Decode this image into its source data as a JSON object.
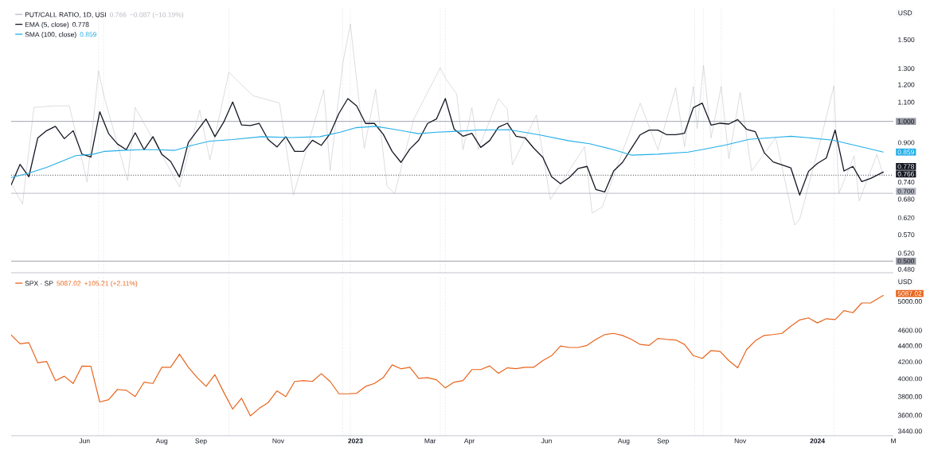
{
  "chart_data": [
    {
      "type": "line",
      "log": true,
      "legend": "top left",
      "tick_labels": "y",
      "xlim": [
        "2022-04-04",
        "2024-03-01"
      ],
      "ylim": [
        0.472,
        1.756
      ],
      "yticks": [
        {
          "value": 1.5,
          "label": "1.500"
        },
        {
          "value": 1.3,
          "label": "1.300"
        },
        {
          "value": 1.2,
          "label": "1.200"
        },
        {
          "value": 1.1,
          "label": "1.100"
        },
        {
          "value": 0.9,
          "label": "0.900"
        },
        {
          "value": 0.74,
          "label": "0.740"
        },
        {
          "value": 0.68,
          "label": "0.680"
        },
        {
          "value": 0.62,
          "label": "0.620"
        },
        {
          "value": 0.57,
          "label": "0.570"
        },
        {
          "value": 0.52,
          "label": "0.520"
        },
        {
          "value": 0.48,
          "label": "0.480"
        }
      ],
      "x": [
        "2022-04-04",
        "2022-04-11",
        "2022-04-18",
        "2022-04-25",
        "2022-05-02",
        "2022-05-09",
        "2022-05-16",
        "2022-05-23",
        "2022-05-30",
        "2022-06-06",
        "2022-06-13",
        "2022-06-20",
        "2022-06-27",
        "2022-07-04",
        "2022-07-11",
        "2022-07-18",
        "2022-07-25",
        "2022-08-01",
        "2022-08-08",
        "2022-08-15",
        "2022-08-22",
        "2022-08-29",
        "2022-09-05",
        "2022-09-12",
        "2022-09-19",
        "2022-09-26",
        "2022-10-03",
        "2022-10-10",
        "2022-10-17",
        "2022-10-24",
        "2022-10-31",
        "2022-11-07",
        "2022-11-14",
        "2022-11-21",
        "2022-11-28",
        "2022-12-05",
        "2022-12-12",
        "2022-12-19",
        "2022-12-26",
        "2023-01-02",
        "2023-01-09",
        "2023-01-16",
        "2023-01-23",
        "2023-01-30",
        "2023-02-06",
        "2023-02-13",
        "2023-02-20",
        "2023-02-27",
        "2023-03-06",
        "2023-03-13",
        "2023-03-20",
        "2023-03-27",
        "2023-04-03",
        "2023-04-10",
        "2023-04-17",
        "2023-04-24",
        "2023-05-01",
        "2023-05-08",
        "2023-05-15",
        "2023-05-22",
        "2023-05-29",
        "2023-06-05",
        "2023-06-12",
        "2023-06-19",
        "2023-06-26",
        "2023-07-03",
        "2023-07-10",
        "2023-07-17",
        "2023-07-24",
        "2023-07-31",
        "2023-08-07",
        "2023-08-14",
        "2023-08-21",
        "2023-08-28",
        "2023-09-04",
        "2023-09-11",
        "2023-09-18",
        "2023-09-25",
        "2023-10-02",
        "2023-10-09",
        "2023-10-16",
        "2023-10-23",
        "2023-10-30",
        "2023-11-06",
        "2023-11-13",
        "2023-11-20",
        "2023-11-27",
        "2023-12-04",
        "2023-12-11",
        "2023-12-18",
        "2023-12-25",
        "2024-01-01",
        "2024-01-08",
        "2024-01-15",
        "2024-01-22",
        "2024-01-29",
        "2024-02-05",
        "2024-02-12",
        "2024-02-22"
      ],
      "series": [
        {
          "name": "PUT/CALL RATIO, 1D, USI",
          "color": "#b8bbc2",
          "x": [
            "2022-04-04",
            "2022-04-13",
            "2022-04-22",
            "2022-05-08",
            "2022-05-20",
            "2022-06-03",
            "2022-06-12",
            "2022-06-16",
            "2022-07-05",
            "2022-07-11",
            "2022-08-15",
            "2022-08-31",
            "2022-09-08",
            "2022-09-23",
            "2022-10-12",
            "2022-11-02",
            "2022-11-13",
            "2022-12-07",
            "2022-12-12",
            "2022-12-22",
            "2022-12-28",
            "2023-01-08",
            "2023-01-17",
            "2023-01-26",
            "2023-02-01",
            "2023-02-16",
            "2023-03-09",
            "2023-03-13",
            "2023-03-22",
            "2023-03-27",
            "2023-04-03",
            "2023-04-08",
            "2023-04-24",
            "2023-05-01",
            "2023-05-05",
            "2023-05-24",
            "2023-06-04",
            "2023-07-01",
            "2023-07-07",
            "2023-07-15",
            "2023-08-14",
            "2023-08-28",
            "2023-09-11",
            "2023-09-18",
            "2023-09-25",
            "2023-09-28",
            "2023-10-03",
            "2023-10-09",
            "2023-10-17",
            "2023-10-23",
            "2023-11-01",
            "2023-11-10",
            "2023-11-29",
            "2023-12-14",
            "2023-12-18",
            "2024-01-04",
            "2024-01-14",
            "2024-01-18",
            "2024-01-30",
            "2024-02-03",
            "2024-02-17",
            "2024-02-22"
          ],
          "values": [
            0.735,
            0.664,
            1.072,
            1.08,
            1.08,
            0.741,
            1.285,
            1.144,
            0.746,
            1.072,
            0.723,
            1.057,
            0.826,
            1.276,
            1.136,
            1.096,
            0.694,
            1.17,
            0.785,
            1.333,
            1.621,
            0.875,
            1.173,
            0.725,
            0.699,
            1.01,
            1.304,
            1.24,
            1.146,
            0.869,
            1.071,
            0.869,
            1.12,
            1.063,
            0.806,
            1.032,
            0.679,
            0.882,
            0.635,
            0.654,
            1.095,
            0.869,
            1.181,
            0.882,
            1.19,
            0.965,
            1.321,
            0.922,
            1.19,
            0.831,
            1.154,
            0.782,
            0.922,
            0.598,
            0.616,
            0.922,
            1.193,
            0.7,
            0.843,
            0.674,
            0.849,
            0.766
          ]
        },
        {
          "name": "EMA (5, close)",
          "color": "#131722",
          "values": [
            0.73,
            0.808,
            0.76,
            0.921,
            0.955,
            0.976,
            0.918,
            0.955,
            0.85,
            0.838,
            1.049,
            0.941,
            0.894,
            0.869,
            0.945,
            0.869,
            0.927,
            0.85,
            0.82,
            0.759,
            0.901,
            0.955,
            1.012,
            0.927,
            0.997,
            1.101,
            0.983,
            0.98,
            0.99,
            0.914,
            0.881,
            0.927,
            0.862,
            0.862,
            0.911,
            0.888,
            0.941,
            1.041,
            1.12,
            1.08,
            0.99,
            0.99,
            0.938,
            0.862,
            0.816,
            0.872,
            0.911,
            0.99,
            1.012,
            1.12,
            0.962,
            0.929,
            0.943,
            0.879,
            0.909,
            0.972,
            0.991,
            0.929,
            0.922,
            0.875,
            0.837,
            0.76,
            0.734,
            0.757,
            0.792,
            0.8,
            0.713,
            0.705,
            0.782,
            0.816,
            0.875,
            0.936,
            0.958,
            0.958,
            0.936,
            0.936,
            0.943,
            1.071,
            1.095,
            0.982,
            0.991,
            0.987,
            1.009,
            0.962,
            0.95,
            0.856,
            0.818,
            0.806,
            0.794,
            0.694,
            0.781,
            0.812,
            0.834,
            0.958,
            0.782,
            0.8,
            0.742,
            0.754,
            0.778
          ]
        },
        {
          "name": "SMA (100, close)",
          "color": "#22aee8",
          "x": [
            "2022-04-04",
            "2022-04-18",
            "2022-05-02",
            "2022-05-11",
            "2022-05-25",
            "2022-06-08",
            "2022-06-17",
            "2022-07-01",
            "2022-07-15",
            "2022-07-29",
            "2022-08-11",
            "2022-08-25",
            "2022-09-08",
            "2022-09-26",
            "2022-10-19",
            "2022-11-11",
            "2022-12-04",
            "2022-12-20",
            "2023-01-01",
            "2023-01-17",
            "2023-01-31",
            "2023-02-20",
            "2023-03-06",
            "2023-03-22",
            "2023-04-08",
            "2023-05-02",
            "2023-05-26",
            "2023-06-18",
            "2023-07-05",
            "2023-07-24",
            "2023-08-07",
            "2023-08-28",
            "2023-09-21",
            "2023-10-03",
            "2023-10-20",
            "2023-11-08",
            "2023-12-01",
            "2023-12-11",
            "2023-12-25",
            "2024-01-13",
            "2024-01-30",
            "2024-02-22"
          ],
          "values": [
            0.757,
            0.774,
            0.796,
            0.814,
            0.844,
            0.85,
            0.862,
            0.866,
            0.869,
            0.869,
            0.866,
            0.888,
            0.907,
            0.914,
            0.927,
            0.923,
            0.927,
            0.948,
            0.969,
            0.976,
            0.962,
            0.941,
            0.948,
            0.952,
            0.958,
            0.96,
            0.936,
            0.909,
            0.895,
            0.869,
            0.846,
            0.85,
            0.859,
            0.871,
            0.889,
            0.915,
            0.925,
            0.929,
            0.922,
            0.911,
            0.889,
            0.859
          ]
        }
      ],
      "ref_lines": [
        {
          "axis": "y",
          "value": 1.0,
          "label": "1.000",
          "color": "#9598a1"
        },
        {
          "axis": "y",
          "value": 0.766,
          "label": "0.766",
          "color": "#131722",
          "line_style": "dotted"
        },
        {
          "axis": "y",
          "value": 0.7,
          "label": "0.700",
          "color": "#b2b5be"
        },
        {
          "axis": "y",
          "value": 0.5,
          "label": "0.500",
          "color": "#9598a1"
        },
        {
          "axis": "x",
          "value": "2022-06-12",
          "color": "#b2b5be",
          "line_style": "dotted"
        },
        {
          "axis": "x",
          "value": "2022-06-16",
          "color": "#b2b5be",
          "line_style": "dotted"
        },
        {
          "axis": "x",
          "value": "2022-09-23",
          "color": "#b2b5be",
          "line_style": "dotted"
        },
        {
          "axis": "x",
          "value": "2022-12-22",
          "color": "#b2b5be",
          "line_style": "dotted"
        },
        {
          "axis": "x",
          "value": "2022-12-28",
          "color": "#b2b5be",
          "line_style": "dotted"
        },
        {
          "axis": "x",
          "value": "2023-03-09",
          "color": "#b2b5be",
          "line_style": "dotted"
        },
        {
          "axis": "x",
          "value": "2023-03-13",
          "color": "#b2b5be",
          "line_style": "dotted"
        },
        {
          "axis": "x",
          "value": "2023-09-26",
          "color": "#b2b5be",
          "line_style": "dotted"
        },
        {
          "axis": "x",
          "value": "2023-10-03",
          "color": "#b2b5be",
          "line_style": "dotted"
        },
        {
          "axis": "x",
          "value": "2023-10-17",
          "color": "#b2b5be",
          "line_style": "dotted"
        },
        {
          "axis": "x",
          "value": "2024-01-14",
          "color": "#b2b5be",
          "line_style": "dotted"
        }
      ],
      "annotations": [
        "0.766",
        "−0.087 (−10.19%)",
        "0.778",
        "0.859",
        "USD",
        {
          "text": "0.859",
          "x": "2024-02-22",
          "y": 0.859
        },
        {
          "text": "0.778",
          "x": "2024-02-22",
          "y": 0.778
        }
      ]
    },
    {
      "type": "line",
      "log": true,
      "legend": "top left",
      "xlim": [
        "2022-04-04",
        "2024-03-01"
      ],
      "ylim": [
        3395,
        5370
      ],
      "xticks": [
        {
          "value": "2022-06-01",
          "label": "Jun"
        },
        {
          "value": "2022-08-01",
          "label": "Aug"
        },
        {
          "value": "2022-09-01",
          "label": "Sep"
        },
        {
          "value": "2022-11-01",
          "label": "Nov"
        },
        {
          "value": "2023-01-01",
          "label": "2023"
        },
        {
          "value": "2023-03-01",
          "label": "Mar"
        },
        {
          "value": "2023-04-01",
          "label": "Apr"
        },
        {
          "value": "2023-06-01",
          "label": "Jun"
        },
        {
          "value": "2023-08-01",
          "label": "Aug"
        },
        {
          "value": "2023-09-01",
          "label": "Sep"
        },
        {
          "value": "2023-11-01",
          "label": "Nov"
        },
        {
          "value": "2024-01-01",
          "label": "2024"
        },
        {
          "value": "2024-03-01",
          "label": "M"
        }
      ],
      "yticks": [
        {
          "value": 5000,
          "label": "5000.00"
        },
        {
          "value": 4600,
          "label": "4600.00"
        },
        {
          "value": 4400,
          "label": "4400.00"
        },
        {
          "value": 4200,
          "label": "4200.00"
        },
        {
          "value": 4000,
          "label": "4000.00"
        },
        {
          "value": 3800,
          "label": "3800.00"
        },
        {
          "value": 3600,
          "label": "3600.00"
        },
        {
          "value": 3440,
          "label": "3440.00"
        }
      ],
      "x": [
        "2022-04-04",
        "2022-04-11",
        "2022-04-18",
        "2022-04-25",
        "2022-05-02",
        "2022-05-09",
        "2022-05-16",
        "2022-05-23",
        "2022-05-30",
        "2022-06-06",
        "2022-06-13",
        "2022-06-20",
        "2022-06-27",
        "2022-07-04",
        "2022-07-11",
        "2022-07-18",
        "2022-07-25",
        "2022-08-01",
        "2022-08-08",
        "2022-08-15",
        "2022-08-22",
        "2022-08-29",
        "2022-09-05",
        "2022-09-12",
        "2022-09-19",
        "2022-09-26",
        "2022-10-03",
        "2022-10-10",
        "2022-10-17",
        "2022-10-24",
        "2022-10-31",
        "2022-11-07",
        "2022-11-14",
        "2022-11-21",
        "2022-11-28",
        "2022-12-05",
        "2022-12-12",
        "2022-12-19",
        "2022-12-26",
        "2023-01-02",
        "2023-01-09",
        "2023-01-16",
        "2023-01-23",
        "2023-01-30",
        "2023-02-06",
        "2023-02-13",
        "2023-02-20",
        "2023-02-27",
        "2023-03-06",
        "2023-03-13",
        "2023-03-20",
        "2023-03-27",
        "2023-04-03",
        "2023-04-10",
        "2023-04-17",
        "2023-04-24",
        "2023-05-01",
        "2023-05-08",
        "2023-05-15",
        "2023-05-22",
        "2023-05-29",
        "2023-06-05",
        "2023-06-12",
        "2023-06-19",
        "2023-06-26",
        "2023-07-03",
        "2023-07-10",
        "2023-07-17",
        "2023-07-24",
        "2023-07-31",
        "2023-08-07",
        "2023-08-14",
        "2023-08-21",
        "2023-08-28",
        "2023-09-04",
        "2023-09-11",
        "2023-09-18",
        "2023-09-25",
        "2023-10-02",
        "2023-10-09",
        "2023-10-16",
        "2023-10-23",
        "2023-10-30",
        "2023-11-06",
        "2023-11-13",
        "2023-11-20",
        "2023-11-27",
        "2023-12-04",
        "2023-12-11",
        "2023-12-18",
        "2023-12-25",
        "2024-01-01",
        "2024-01-08",
        "2024-01-15",
        "2024-01-22",
        "2024-01-29",
        "2024-02-05",
        "2024-02-12",
        "2024-02-22"
      ],
      "series": [
        {
          "name": "SPX · SP",
          "color": "#e8641b",
          "values": [
            4540,
            4425,
            4440,
            4190,
            4205,
            3980,
            4030,
            3947,
            4150,
            4147,
            3742,
            3767,
            3880,
            3870,
            3800,
            3963,
            3947,
            4135,
            4135,
            4295,
            4135,
            4014,
            3914,
            4048,
            3848,
            3666,
            3783,
            3595,
            3673,
            3735,
            3864,
            3800,
            3970,
            3980,
            3970,
            4060,
            3970,
            3831,
            3831,
            3837,
            3914,
            3947,
            4014,
            4164,
            4117,
            4135,
            4005,
            4014,
            3990,
            3897,
            3963,
            3980,
            4108,
            4108,
            4152,
            4064,
            4129,
            4118,
            4136,
            4136,
            4216,
            4276,
            4397,
            4378,
            4378,
            4405,
            4482,
            4544,
            4560,
            4533,
            4482,
            4417,
            4405,
            4494,
            4482,
            4474,
            4417,
            4276,
            4242,
            4340,
            4329,
            4216,
            4129,
            4351,
            4466,
            4533,
            4544,
            4560,
            4655,
            4740,
            4768,
            4699,
            4757,
            4745,
            4870,
            4840,
            4978,
            4978,
            5087.02
          ]
        }
      ],
      "ref_lines": [
        {
          "axis": "x",
          "value": "2022-06-12",
          "color": "#b2b5be",
          "line_style": "dotted"
        },
        {
          "axis": "x",
          "value": "2022-06-16",
          "color": "#b2b5be",
          "line_style": "dotted"
        },
        {
          "axis": "x",
          "value": "2022-09-23",
          "color": "#b2b5be",
          "line_style": "dotted"
        },
        {
          "axis": "x",
          "value": "2022-12-22",
          "color": "#b2b5be",
          "line_style": "dotted"
        },
        {
          "axis": "x",
          "value": "2022-12-28",
          "color": "#b2b5be",
          "line_style": "dotted"
        },
        {
          "axis": "x",
          "value": "2023-03-09",
          "color": "#b2b5be",
          "line_style": "dotted"
        },
        {
          "axis": "x",
          "value": "2023-03-13",
          "color": "#b2b5be",
          "line_style": "dotted"
        },
        {
          "axis": "x",
          "value": "2023-09-26",
          "color": "#b2b5be",
          "line_style": "dotted"
        },
        {
          "axis": "x",
          "value": "2023-10-03",
          "color": "#b2b5be",
          "line_style": "dotted"
        },
        {
          "axis": "x",
          "value": "2023-10-17",
          "color": "#b2b5be",
          "line_style": "dotted"
        },
        {
          "axis": "x",
          "value": "2024-01-14",
          "color": "#b2b5be",
          "line_style": "dotted"
        }
      ],
      "annotations": [
        "5087.02",
        "+105.21 (+2.11%)",
        "USD",
        {
          "text": "5087.02",
          "x": "2024-02-22",
          "y": 5087.02
        }
      ]
    }
  ]
}
